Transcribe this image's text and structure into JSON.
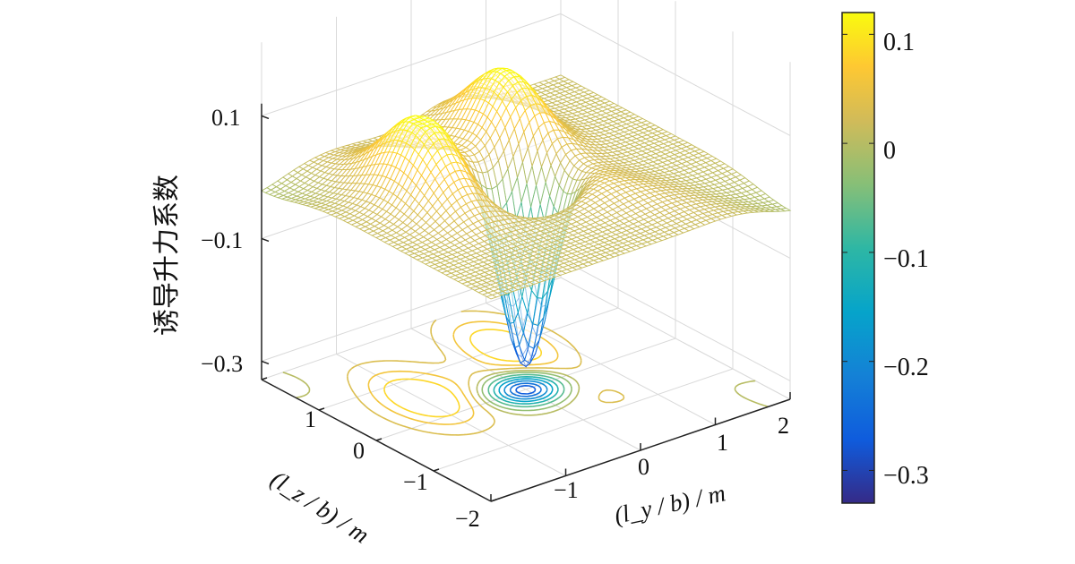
{
  "chart_data": {
    "type": "surface",
    "zlabel": "诱导升力系数",
    "xlabel": "(l_y / b) / m",
    "ylabel": "(l_z / b) / m",
    "xlim": [
      -2,
      2
    ],
    "ylim": [
      -2,
      2
    ],
    "zlim": [
      -0.33,
      0.12
    ],
    "z_ticks": [
      "0.1",
      "−0.1",
      "−0.3"
    ],
    "y_ticks": [
      "1",
      "0",
      "−1",
      "−2"
    ],
    "x_ticks": [
      "−1",
      "0",
      "1",
      "2"
    ],
    "colorbar": {
      "range": [
        -0.33,
        0.12
      ],
      "ticks": [
        "0.1",
        "0",
        "−0.1",
        "−0.2",
        "−0.3"
      ],
      "colormap": [
        "#352a87",
        "#0f5cdd",
        "#1481d6",
        "#06a4ca",
        "#2eb7a4",
        "#87bf77",
        "#d1bb59",
        "#fec832",
        "#f9fb0e"
      ]
    },
    "surface_features": {
      "plateau_value": 0,
      "trough": {
        "ly": 0,
        "lz": 0,
        "value": -0.33
      },
      "peaks": [
        {
          "ly": -1.0,
          "lz": 0.5,
          "value": 0.12
        },
        {
          "ly": 0.5,
          "lz": 1.0,
          "value": 0.12
        }
      ],
      "contour_lines_on_floor": true
    },
    "grid": true,
    "legend": "colorbar-right"
  }
}
